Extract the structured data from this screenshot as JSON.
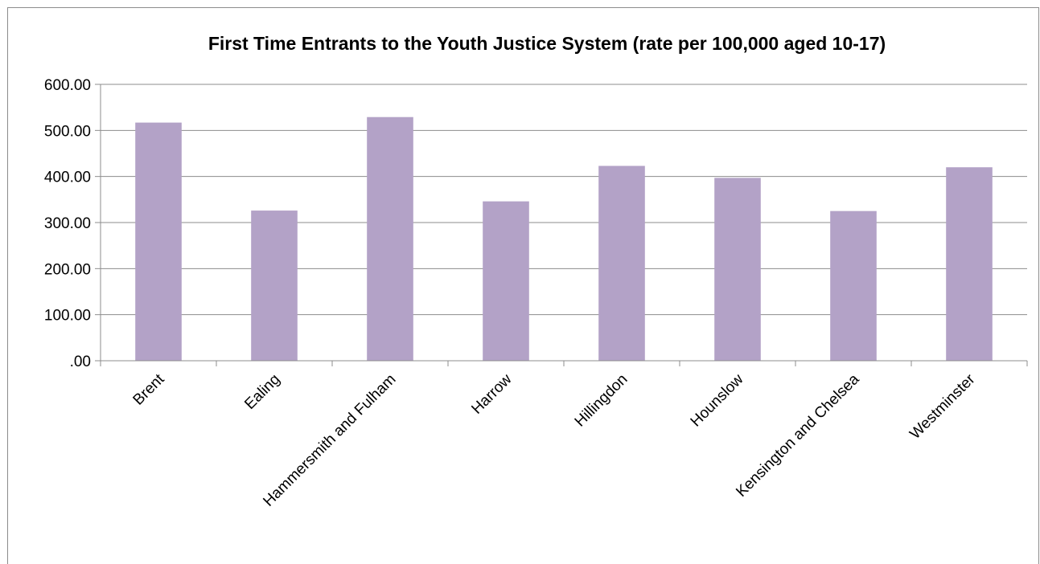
{
  "chart_data": {
    "type": "bar",
    "title": "First Time Entrants to the Youth Justice System (rate per 100,000 aged 10-17)",
    "xlabel": "",
    "ylabel": "",
    "categories": [
      "Brent",
      "Ealing",
      "Hammersmith and Fulham",
      "Harrow",
      "Hillingdon",
      "Hounslow",
      "Kensington and Chelsea",
      "Westminster"
    ],
    "values": [
      517,
      326,
      529,
      346,
      423,
      397,
      325,
      420
    ],
    "ylim": [
      0,
      600
    ],
    "yticks": [
      ".00",
      "100.00",
      "200.00",
      "300.00",
      "400.00",
      "500.00",
      "600.00"
    ],
    "grid": true,
    "legend": "none",
    "bar_color": "#b3a2c7",
    "gridline_color": "#8c8c8c"
  }
}
